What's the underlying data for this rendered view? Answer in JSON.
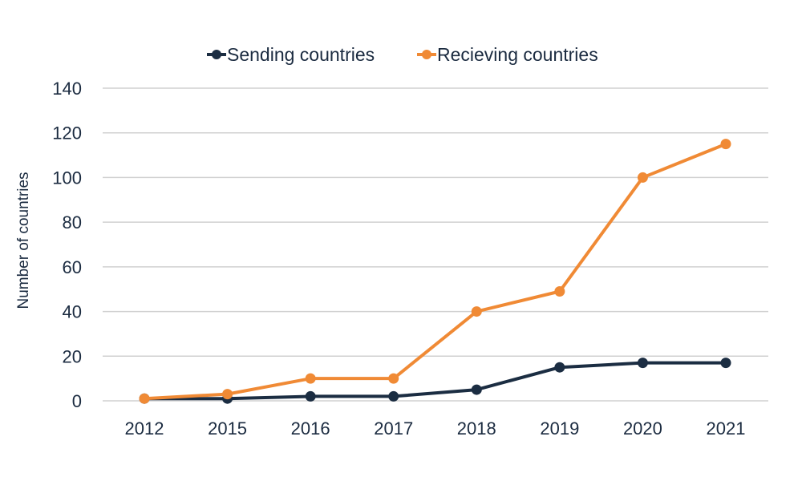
{
  "chart_data": {
    "type": "line",
    "title": "",
    "xlabel": "",
    "ylabel": "Number of countries",
    "ylim": [
      0,
      140
    ],
    "yticks": [
      0,
      20,
      40,
      60,
      80,
      100,
      120,
      140
    ],
    "categories": [
      "2012",
      "2015",
      "2016",
      "2017",
      "2018",
      "2019",
      "2020",
      "2021"
    ],
    "series": [
      {
        "name": "Sending countries",
        "color": "#1b2d42",
        "values": [
          1,
          1,
          2,
          2,
          5,
          15,
          17,
          17
        ]
      },
      {
        "name": "Recieving countries",
        "color": "#f08a35",
        "values": [
          1,
          3,
          10,
          10,
          40,
          49,
          100,
          115
        ]
      }
    ],
    "grid": true,
    "legend_position": "top"
  }
}
